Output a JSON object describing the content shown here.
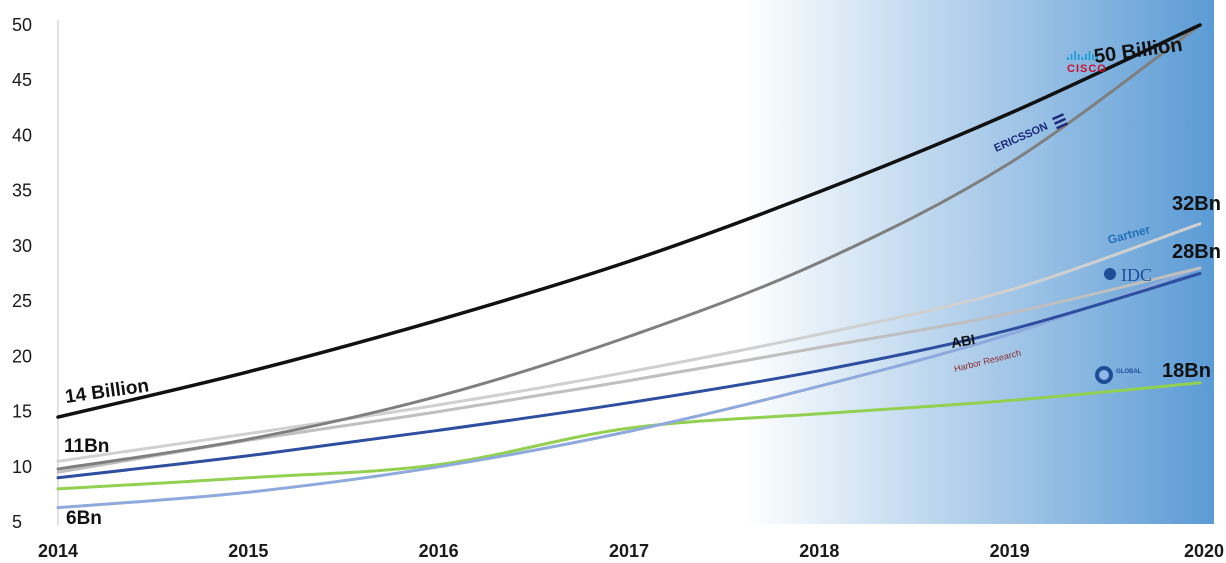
{
  "chart_data": {
    "type": "line",
    "title": "",
    "xlabel": "",
    "ylabel": "",
    "x": [
      2014,
      2015,
      2016,
      2017,
      2018,
      2019,
      2020
    ],
    "xlim": [
      2014,
      2020
    ],
    "ylim": [
      5,
      50
    ],
    "y_ticks": [
      5,
      10,
      15,
      20,
      25,
      30,
      35,
      40,
      45,
      50
    ],
    "grid": false,
    "legend": "none",
    "background_gradient": {
      "from": "#ffffff",
      "to": "#5b9bd5",
      "start_x": 2017.6
    },
    "series": [
      {
        "key": "cisco",
        "color": "#111111",
        "width": 3.5,
        "values": [
          14.5,
          18.6,
          23.3,
          28.6,
          34.9,
          42.0,
          50.0
        ]
      },
      {
        "key": "ericsson",
        "color": "#7f7f7f",
        "width": 3,
        "values": [
          9.8,
          12.5,
          16.4,
          21.8,
          28.5,
          37.5,
          50.0
        ]
      },
      {
        "key": "gartner",
        "color": "#d0d0d0",
        "width": 3,
        "values": [
          10.5,
          13.0,
          15.6,
          18.6,
          22.0,
          26.0,
          32.0
        ]
      },
      {
        "key": "idc",
        "color": "#bfbfbf",
        "width": 3,
        "values": [
          9.5,
          12.4,
          15.0,
          17.8,
          20.8,
          23.9,
          28.0
        ]
      },
      {
        "key": "abi",
        "color": "#2e4fa0",
        "width": 3,
        "values": [
          9.0,
          11.0,
          13.3,
          15.8,
          18.7,
          22.4,
          27.5
        ]
      },
      {
        "key": "harbor",
        "color": "#8ea9db",
        "width": 3,
        "values": [
          6.3,
          7.7,
          10.0,
          13.2,
          17.3,
          22.0,
          28.0
        ]
      },
      {
        "key": "global",
        "color": "#92d050",
        "width": 3,
        "values": [
          8.0,
          9.0,
          10.2,
          13.5,
          14.8,
          16.0,
          17.6
        ]
      }
    ],
    "annotations": {
      "start_14": "14 Billion",
      "start_11": "11Bn",
      "start_6": "6Bn",
      "end_50": "50 Billion",
      "end_32": "32Bn",
      "end_28": "28Bn",
      "end_18": "18Bn"
    },
    "brand_labels": {
      "cisco": "CISCO",
      "ericsson": "ERICSSON",
      "gartner": "Gartner",
      "idc": "IDC",
      "abi": "ABI",
      "harbor": "Harbor Research",
      "global": "GLOBAL"
    },
    "brand_colors": {
      "cisco_bars": "#1f9fd6",
      "cisco_text": "#c8102e",
      "ericsson": "#1f2a7a",
      "gartner": "#1f6fb8",
      "idc": "#1f4e99",
      "harbor": "#8b2b2b",
      "global": "#1f4e99"
    }
  }
}
